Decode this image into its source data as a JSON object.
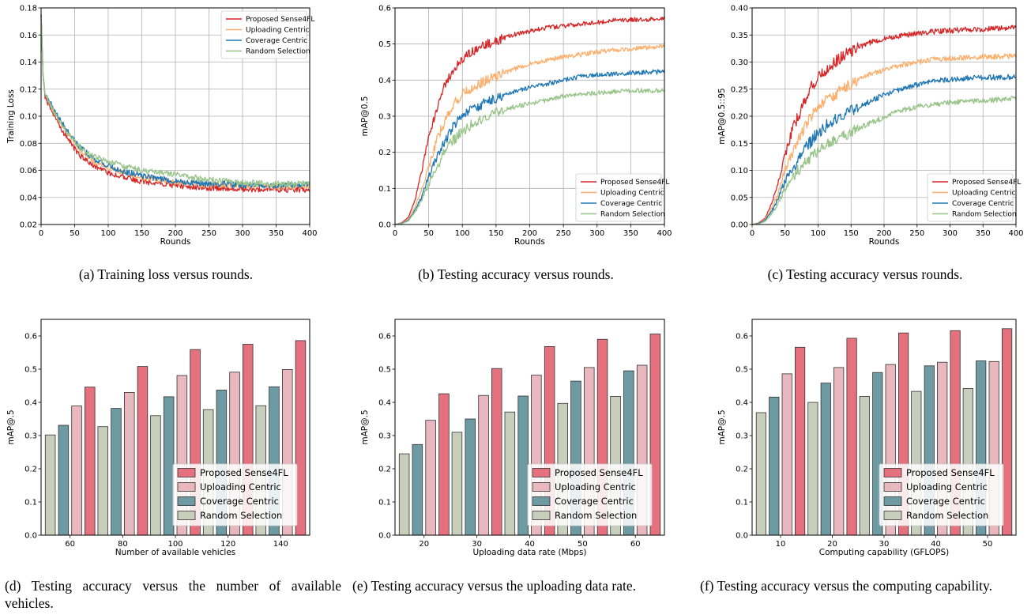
{
  "captions": {
    "a": "(a) Training loss versus rounds.",
    "b": "(b) Testing accuracy versus rounds.",
    "c": "(c) Testing accuracy versus rounds.",
    "d": "(d) Testing accuracy versus the number of available vehicles.",
    "e": "(e) Testing accuracy versus the uploading data rate.",
    "f": "(f) Testing accuracy versus the computing capability."
  },
  "colors": {
    "line_proposed": "#d62728",
    "line_uploading": "#fdae6b",
    "line_coverage": "#1f77b4",
    "line_random": "#98c48a",
    "bar_proposed": "#e5707e",
    "bar_uploading": "#e8b8be",
    "bar_coverage": "#6e9aa3",
    "bar_random": "#c8cebc"
  },
  "chart_data": [
    {
      "id": "a",
      "type": "line",
      "xlabel": "Rounds",
      "ylabel": "Training Loss",
      "xlim": [
        0,
        400
      ],
      "ylim": [
        0.02,
        0.18
      ],
      "xticks": [
        0,
        50,
        100,
        150,
        200,
        250,
        300,
        350,
        400
      ],
      "yticks": [
        0.02,
        0.04,
        0.06,
        0.08,
        0.1,
        0.12,
        0.14,
        0.16,
        0.18
      ],
      "yticklabels": [
        "0.02",
        "0.04",
        "0.06",
        "0.08",
        "0.10",
        "0.12",
        "0.14",
        "0.16",
        "0.18"
      ],
      "grid": true,
      "legend": "top-right",
      "series": [
        {
          "name": "Proposed Sense4FL",
          "color": "#d62728",
          "x": [
            0,
            3,
            6,
            10,
            15,
            20,
            30,
            40,
            50,
            60,
            70,
            80,
            90,
            100,
            125,
            150,
            175,
            200,
            225,
            250,
            275,
            300,
            325,
            350,
            375,
            400
          ],
          "y": [
            0.175,
            0.13,
            0.115,
            0.109,
            0.106,
            0.1,
            0.09,
            0.083,
            0.076,
            0.07,
            0.066,
            0.063,
            0.061,
            0.058,
            0.055,
            0.052,
            0.05,
            0.049,
            0.048,
            0.047,
            0.047,
            0.046,
            0.046,
            0.046,
            0.046,
            0.046
          ]
        },
        {
          "name": "Uploading Centric",
          "color": "#fdae6b",
          "x": [
            0,
            3,
            6,
            10,
            15,
            20,
            30,
            40,
            50,
            60,
            70,
            80,
            90,
            100,
            125,
            150,
            175,
            200,
            225,
            250,
            275,
            300,
            325,
            350,
            375,
            400
          ],
          "y": [
            0.175,
            0.13,
            0.116,
            0.111,
            0.108,
            0.103,
            0.094,
            0.087,
            0.08,
            0.074,
            0.07,
            0.066,
            0.064,
            0.062,
            0.058,
            0.055,
            0.053,
            0.051,
            0.05,
            0.049,
            0.049,
            0.049,
            0.048,
            0.048,
            0.048,
            0.048
          ]
        },
        {
          "name": "Coverage Centric",
          "color": "#1f77b4",
          "x": [
            0,
            3,
            6,
            10,
            15,
            20,
            30,
            40,
            50,
            60,
            70,
            80,
            90,
            100,
            125,
            150,
            175,
            200,
            225,
            250,
            275,
            300,
            325,
            350,
            375,
            400
          ],
          "y": [
            0.175,
            0.13,
            0.117,
            0.112,
            0.109,
            0.104,
            0.096,
            0.089,
            0.082,
            0.076,
            0.072,
            0.068,
            0.066,
            0.063,
            0.059,
            0.056,
            0.054,
            0.052,
            0.051,
            0.05,
            0.05,
            0.049,
            0.049,
            0.049,
            0.049,
            0.049
          ]
        },
        {
          "name": "Random Selection",
          "color": "#98c48a",
          "x": [
            0,
            3,
            6,
            10,
            15,
            20,
            30,
            40,
            50,
            60,
            70,
            80,
            90,
            100,
            125,
            150,
            175,
            200,
            225,
            250,
            275,
            300,
            325,
            350,
            375,
            400
          ],
          "y": [
            0.175,
            0.13,
            0.117,
            0.112,
            0.108,
            0.102,
            0.094,
            0.087,
            0.081,
            0.076,
            0.073,
            0.07,
            0.068,
            0.066,
            0.063,
            0.06,
            0.058,
            0.057,
            0.055,
            0.053,
            0.052,
            0.051,
            0.051,
            0.05,
            0.05,
            0.05
          ]
        }
      ]
    },
    {
      "id": "b",
      "type": "line",
      "xlabel": "Rounds",
      "ylabel": "mAP@0.5",
      "xlim": [
        0,
        400
      ],
      "ylim": [
        0,
        0.6
      ],
      "xticks": [
        0,
        50,
        100,
        150,
        200,
        250,
        300,
        350,
        400
      ],
      "yticks": [
        0,
        0.1,
        0.2,
        0.3,
        0.4,
        0.5,
        0.6
      ],
      "yticklabels": [
        "0.0",
        "0.1",
        "0.2",
        "0.3",
        "0.4",
        "0.5",
        "0.6"
      ],
      "grid": true,
      "legend": "bottom-right",
      "series": [
        {
          "name": "Proposed Sense4FL",
          "color": "#d62728",
          "x": [
            0,
            10,
            20,
            30,
            40,
            50,
            60,
            70,
            80,
            90,
            100,
            125,
            150,
            175,
            200,
            225,
            250,
            275,
            300,
            325,
            350,
            375,
            400
          ],
          "y": [
            0,
            0.005,
            0.02,
            0.07,
            0.15,
            0.24,
            0.31,
            0.37,
            0.41,
            0.43,
            0.46,
            0.49,
            0.51,
            0.525,
            0.535,
            0.545,
            0.55,
            0.555,
            0.56,
            0.565,
            0.567,
            0.568,
            0.57
          ]
        },
        {
          "name": "Uploading Centric",
          "color": "#fdae6b",
          "x": [
            0,
            10,
            20,
            30,
            40,
            50,
            60,
            70,
            80,
            90,
            100,
            125,
            150,
            175,
            200,
            225,
            250,
            275,
            300,
            325,
            350,
            375,
            400
          ],
          "y": [
            0,
            0.004,
            0.015,
            0.05,
            0.1,
            0.16,
            0.22,
            0.27,
            0.31,
            0.34,
            0.36,
            0.39,
            0.41,
            0.43,
            0.445,
            0.455,
            0.465,
            0.47,
            0.478,
            0.483,
            0.487,
            0.49,
            0.492
          ]
        },
        {
          "name": "Coverage Centric",
          "color": "#1f77b4",
          "x": [
            0,
            10,
            20,
            30,
            40,
            50,
            60,
            70,
            80,
            90,
            100,
            125,
            150,
            175,
            200,
            225,
            250,
            275,
            300,
            325,
            350,
            375,
            400
          ],
          "y": [
            0,
            0.003,
            0.012,
            0.04,
            0.08,
            0.13,
            0.18,
            0.22,
            0.25,
            0.28,
            0.3,
            0.33,
            0.35,
            0.365,
            0.38,
            0.39,
            0.4,
            0.41,
            0.415,
            0.418,
            0.42,
            0.422,
            0.423
          ]
        },
        {
          "name": "Random Selection",
          "color": "#98c48a",
          "x": [
            0,
            10,
            20,
            30,
            40,
            50,
            60,
            70,
            80,
            90,
            100,
            125,
            150,
            175,
            200,
            225,
            250,
            275,
            300,
            325,
            350,
            375,
            400
          ],
          "y": [
            0,
            0.002,
            0.01,
            0.035,
            0.07,
            0.11,
            0.15,
            0.19,
            0.22,
            0.24,
            0.26,
            0.29,
            0.31,
            0.325,
            0.335,
            0.345,
            0.355,
            0.36,
            0.365,
            0.368,
            0.37,
            0.371,
            0.372
          ]
        }
      ]
    },
    {
      "id": "c",
      "type": "line",
      "xlabel": "Rounds",
      "ylabel": "mAP@0.5::95",
      "xlim": [
        0,
        400
      ],
      "ylim": [
        0,
        0.4
      ],
      "xticks": [
        0,
        50,
        100,
        150,
        200,
        250,
        300,
        350,
        400
      ],
      "yticks": [
        0,
        0.05,
        0.1,
        0.15,
        0.2,
        0.25,
        0.3,
        0.35,
        0.4
      ],
      "yticklabels": [
        "0.00",
        "0.05",
        "0.10",
        "0.15",
        "0.20",
        "0.25",
        "0.30",
        "0.35",
        "0.40"
      ],
      "grid": true,
      "legend": "bottom-right",
      "series": [
        {
          "name": "Proposed Sense4FL",
          "color": "#d62728",
          "x": [
            0,
            10,
            20,
            30,
            40,
            50,
            60,
            70,
            80,
            90,
            100,
            125,
            150,
            175,
            200,
            225,
            250,
            275,
            300,
            325,
            350,
            375,
            400
          ],
          "y": [
            0,
            0.003,
            0.012,
            0.04,
            0.08,
            0.13,
            0.17,
            0.2,
            0.23,
            0.255,
            0.27,
            0.3,
            0.32,
            0.335,
            0.343,
            0.349,
            0.353,
            0.356,
            0.358,
            0.36,
            0.361,
            0.362,
            0.363
          ]
        },
        {
          "name": "Uploading Centric",
          "color": "#fdae6b",
          "x": [
            0,
            10,
            20,
            30,
            40,
            50,
            60,
            70,
            80,
            90,
            100,
            125,
            150,
            175,
            200,
            225,
            250,
            275,
            300,
            325,
            350,
            375,
            400
          ],
          "y": [
            0,
            0.002,
            0.01,
            0.03,
            0.06,
            0.1,
            0.13,
            0.16,
            0.18,
            0.2,
            0.215,
            0.24,
            0.26,
            0.275,
            0.285,
            0.295,
            0.3,
            0.305,
            0.307,
            0.309,
            0.31,
            0.31,
            0.311
          ]
        },
        {
          "name": "Coverage Centric",
          "color": "#1f77b4",
          "x": [
            0,
            10,
            20,
            30,
            40,
            50,
            60,
            70,
            80,
            90,
            100,
            125,
            150,
            175,
            200,
            225,
            250,
            275,
            300,
            325,
            350,
            375,
            400
          ],
          "y": [
            0,
            0.002,
            0.008,
            0.025,
            0.05,
            0.08,
            0.1,
            0.12,
            0.14,
            0.155,
            0.17,
            0.195,
            0.21,
            0.225,
            0.24,
            0.25,
            0.258,
            0.265,
            0.268,
            0.27,
            0.271,
            0.272,
            0.273
          ]
        },
        {
          "name": "Random Selection",
          "color": "#98c48a",
          "x": [
            0,
            10,
            20,
            30,
            40,
            50,
            60,
            70,
            80,
            90,
            100,
            125,
            150,
            175,
            200,
            225,
            250,
            275,
            300,
            325,
            350,
            375,
            400
          ],
          "y": [
            0,
            0.001,
            0.006,
            0.02,
            0.04,
            0.065,
            0.085,
            0.1,
            0.115,
            0.125,
            0.135,
            0.155,
            0.17,
            0.185,
            0.198,
            0.21,
            0.218,
            0.222,
            0.225,
            0.227,
            0.229,
            0.231,
            0.232
          ]
        }
      ]
    },
    {
      "id": "d",
      "type": "bar",
      "xlabel": "Number of available vehicles",
      "ylabel": "mAP@.5",
      "categories": [
        "60",
        "80",
        "100",
        "120",
        "140"
      ],
      "ylim": [
        0,
        0.65
      ],
      "yticks": [
        0,
        0.1,
        0.2,
        0.3,
        0.4,
        0.5,
        0.6
      ],
      "yticklabels": [
        "0.0",
        "0.1",
        "0.2",
        "0.3",
        "0.4",
        "0.5",
        "0.6"
      ],
      "grid": false,
      "legend": "bottom-right",
      "series": [
        {
          "name": "Random Selection",
          "color": "#c8cebc",
          "values": [
            0.302,
            0.327,
            0.36,
            0.378,
            0.39
          ]
        },
        {
          "name": "Coverage Centric",
          "color": "#6e9aa3",
          "values": [
            0.331,
            0.382,
            0.417,
            0.437,
            0.447
          ]
        },
        {
          "name": "Uploading Centric",
          "color": "#e8b8be",
          "values": [
            0.389,
            0.43,
            0.481,
            0.491,
            0.499
          ]
        },
        {
          "name": "Proposed Sense4FL",
          "color": "#e5707e",
          "values": [
            0.446,
            0.508,
            0.559,
            0.575,
            0.586
          ]
        }
      ]
    },
    {
      "id": "e",
      "type": "bar",
      "xlabel": "Uploading data rate (Mbps)",
      "ylabel": "mAP@.5",
      "categories": [
        "20",
        "30",
        "40",
        "50",
        "60"
      ],
      "ylim": [
        0,
        0.65
      ],
      "yticks": [
        0,
        0.1,
        0.2,
        0.3,
        0.4,
        0.5,
        0.6
      ],
      "yticklabels": [
        "0.0",
        "0.1",
        "0.2",
        "0.3",
        "0.4",
        "0.5",
        "0.6"
      ],
      "grid": false,
      "legend": "bottom-right",
      "series": [
        {
          "name": "Random Selection",
          "color": "#c8cebc",
          "values": [
            0.245,
            0.31,
            0.371,
            0.397,
            0.418
          ]
        },
        {
          "name": "Coverage Centric",
          "color": "#6e9aa3",
          "values": [
            0.273,
            0.35,
            0.419,
            0.464,
            0.495
          ]
        },
        {
          "name": "Uploading Centric",
          "color": "#e8b8be",
          "values": [
            0.346,
            0.421,
            0.482,
            0.505,
            0.512
          ]
        },
        {
          "name": "Proposed Sense4FL",
          "color": "#e5707e",
          "values": [
            0.426,
            0.502,
            0.568,
            0.59,
            0.606
          ]
        }
      ]
    },
    {
      "id": "f",
      "type": "bar",
      "xlabel": "Computing capability (GFLOPS)",
      "ylabel": "mAP@.5",
      "categories": [
        "10",
        "20",
        "30",
        "40",
        "50"
      ],
      "ylim": [
        0,
        0.65
      ],
      "yticks": [
        0,
        0.1,
        0.2,
        0.3,
        0.4,
        0.5,
        0.6
      ],
      "yticklabels": [
        "0.0",
        "0.1",
        "0.2",
        "0.3",
        "0.4",
        "0.5",
        "0.6"
      ],
      "grid": false,
      "legend": "bottom-right",
      "series": [
        {
          "name": "Random Selection",
          "color": "#c8cebc",
          "values": [
            0.369,
            0.4,
            0.418,
            0.433,
            0.442
          ]
        },
        {
          "name": "Coverage Centric",
          "color": "#6e9aa3",
          "values": [
            0.416,
            0.458,
            0.49,
            0.51,
            0.525
          ]
        },
        {
          "name": "Uploading Centric",
          "color": "#e8b8be",
          "values": [
            0.486,
            0.505,
            0.514,
            0.521,
            0.523
          ]
        },
        {
          "name": "Proposed Sense4FL",
          "color": "#e5707e",
          "values": [
            0.566,
            0.593,
            0.609,
            0.616,
            0.622
          ]
        }
      ]
    }
  ]
}
